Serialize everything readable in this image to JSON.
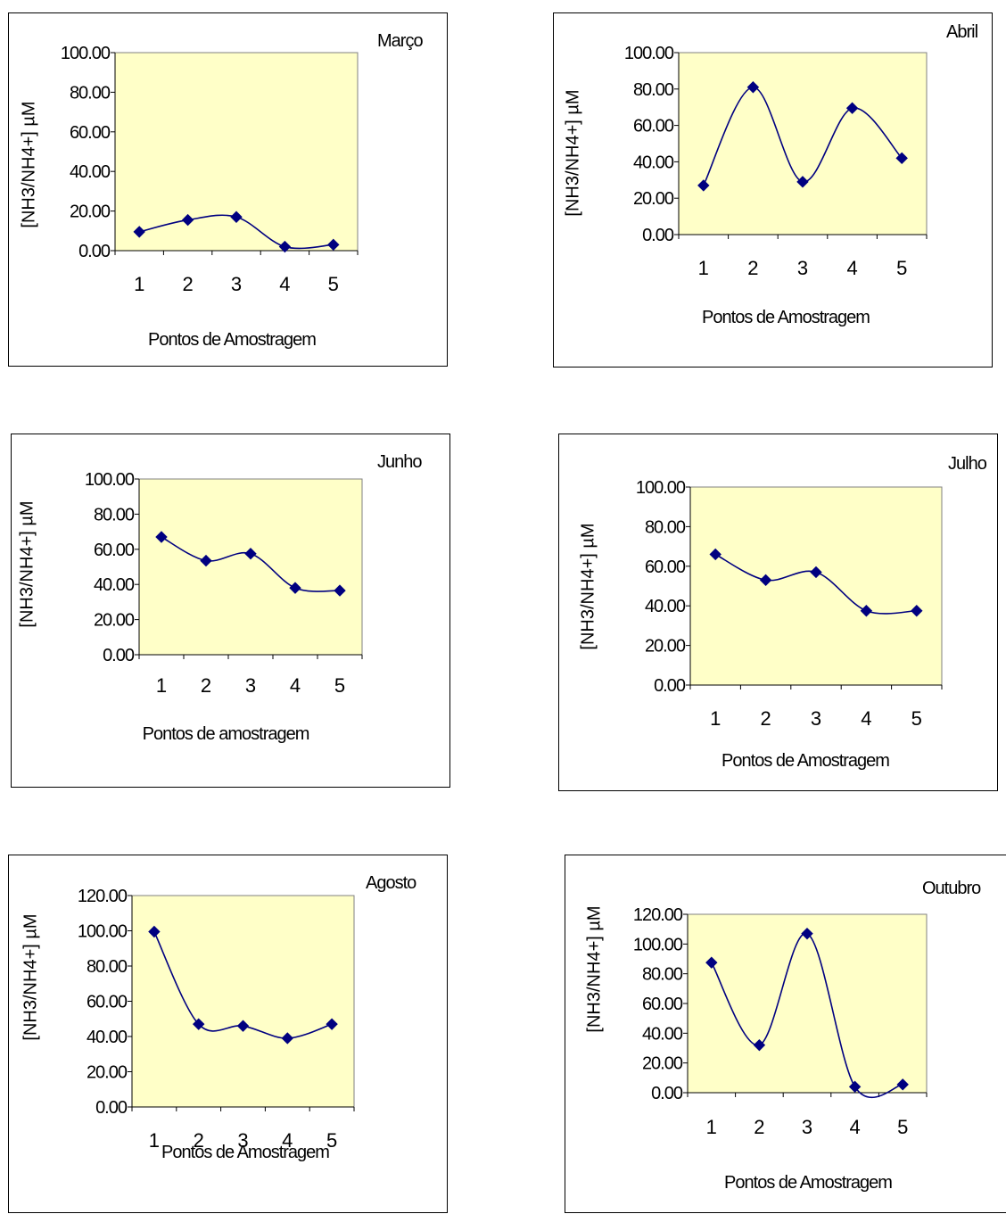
{
  "chart_data": [
    {
      "type": "line",
      "title": "Março",
      "xlabel": "Pontos de Amostragem",
      "ylabel": "[NH3/NH4+] µM",
      "categories": [
        "1",
        "2",
        "3",
        "4",
        "5"
      ],
      "values": [
        9.5,
        15.5,
        17.0,
        2.0,
        3.0
      ],
      "ylim": [
        0,
        100
      ],
      "yticks": [
        "100.00",
        "80.00",
        "60.00",
        "40.00",
        "20.00",
        "0.00"
      ],
      "background": "#ffffc8",
      "series_color": "#000080"
    },
    {
      "type": "line",
      "title": "Abril",
      "xlabel": "Pontos de Amostragem",
      "ylabel": "[NH3/NH4+] µM",
      "categories": [
        "1",
        "2",
        "3",
        "4",
        "5"
      ],
      "values": [
        27.0,
        81.0,
        29.0,
        69.5,
        42.0
      ],
      "ylim": [
        0,
        100
      ],
      "yticks": [
        "100.00",
        "80.00",
        "60.00",
        "40.00",
        "20.00",
        "0.00"
      ],
      "background": "#ffffc8",
      "series_color": "#000080"
    },
    {
      "type": "line",
      "title": "Junho",
      "xlabel": "Pontos de amostragem",
      "ylabel": "[NH3/NH4+] µM",
      "categories": [
        "1",
        "2",
        "3",
        "4",
        "5"
      ],
      "values": [
        67.0,
        53.5,
        57.5,
        38.0,
        36.5
      ],
      "ylim": [
        0,
        100
      ],
      "yticks": [
        "100.00",
        "80.00",
        "60.00",
        "40.00",
        "20.00",
        "0.00"
      ],
      "background": "#ffffc8",
      "series_color": "#000080"
    },
    {
      "type": "line",
      "title": "Julho",
      "xlabel": "Pontos de Amostragem",
      "ylabel": "[NH3/NH4+] µM",
      "categories": [
        "1",
        "2",
        "3",
        "4",
        "5"
      ],
      "values": [
        66.0,
        53.0,
        57.0,
        37.5,
        37.5
      ],
      "ylim": [
        0,
        100
      ],
      "yticks": [
        "100.00",
        "80.00",
        "60.00",
        "40.00",
        "20.00",
        "0.00"
      ],
      "background": "#ffffc8",
      "series_color": "#000080"
    },
    {
      "type": "line",
      "title": "Agosto",
      "xlabel": "Pontos de Amostragem",
      "ylabel": "[NH3/NH4+] µM",
      "categories": [
        "1",
        "2",
        "3",
        "4",
        "5"
      ],
      "values": [
        99.5,
        47.0,
        46.0,
        39.0,
        47.0
      ],
      "ylim": [
        0,
        120
      ],
      "yticks": [
        "120.00",
        "100.00",
        "80.00",
        "60.00",
        "40.00",
        "20.00",
        "0.00"
      ],
      "background": "#ffffc8",
      "series_color": "#000080"
    },
    {
      "type": "line",
      "title": "Outubro",
      "xlabel": "Pontos de Amostragem",
      "ylabel": "[NH3/NH4+] µM",
      "categories": [
        "1",
        "2",
        "3",
        "4",
        "5"
      ],
      "values": [
        87.5,
        32.0,
        107.0,
        4.0,
        5.5
      ],
      "ylim": [
        0,
        120
      ],
      "yticks": [
        "120.00",
        "100.00",
        "80.00",
        "60.00",
        "40.00",
        "20.00",
        "0.00"
      ],
      "background": "#ffffc8",
      "series_color": "#000080"
    }
  ]
}
